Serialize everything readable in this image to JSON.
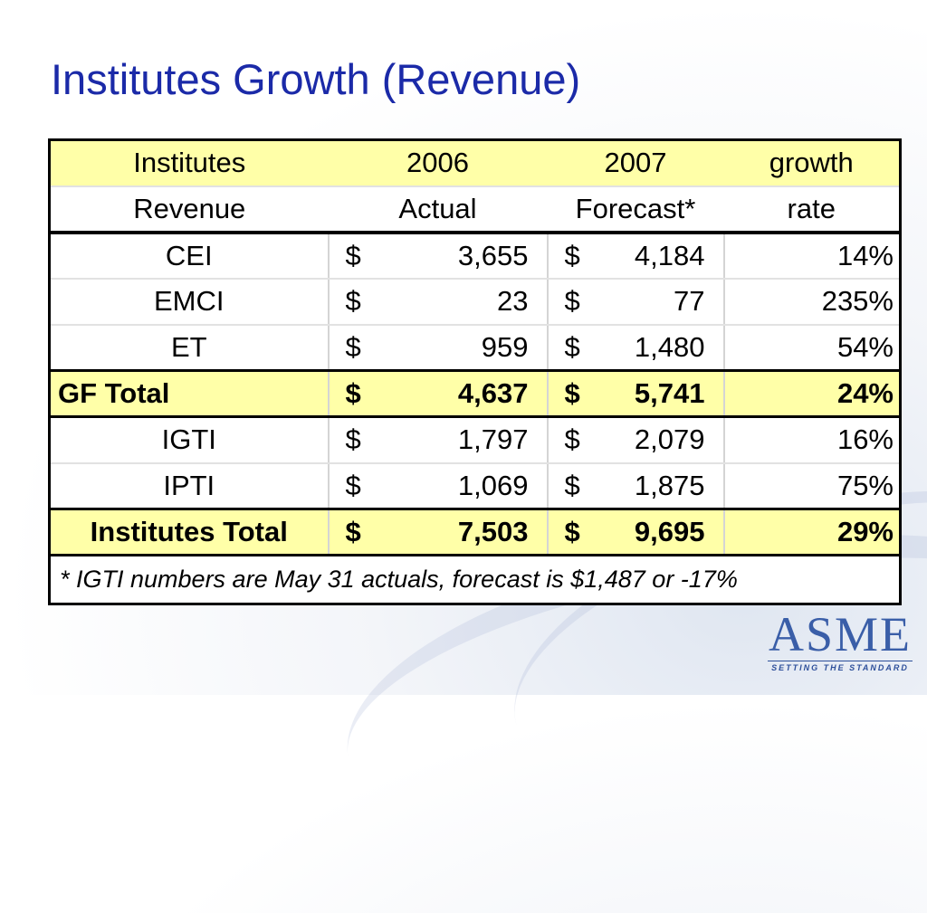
{
  "slide": {
    "title": "Institutes Growth (Revenue)"
  },
  "table": {
    "header_row1": [
      "Institutes",
      "2006",
      "2007",
      "growth"
    ],
    "header_row2": [
      "Revenue",
      "Actual",
      "Forecast*",
      "rate"
    ],
    "currency": "$",
    "rows": [
      {
        "name": "CEI",
        "actual": "3,655",
        "forecast": "4,184",
        "rate": "14%"
      },
      {
        "name": "EMCI",
        "actual": "23",
        "forecast": "77",
        "rate": "235%"
      },
      {
        "name": "ET",
        "actual": "959",
        "forecast": "1,480",
        "rate": "54%"
      },
      {
        "name": "GF Total",
        "actual": "4,637",
        "forecast": "5,741",
        "rate": "24%"
      },
      {
        "name": "IGTI",
        "actual": "1,797",
        "forecast": "2,079",
        "rate": "16%"
      },
      {
        "name": "IPTI",
        "actual": "1,069",
        "forecast": "1,875",
        "rate": "75%"
      },
      {
        "name": "Institutes Total",
        "actual": "7,503",
        "forecast": "9,695",
        "rate": "29%"
      }
    ],
    "footnote": "* IGTI numbers are May 31 actuals, forecast is $1,487 or -17%"
  },
  "logo": {
    "mark": "ASME",
    "tagline": "SETTING THE STANDARD"
  },
  "colors": {
    "title": "#1b2aa8",
    "highlight_fill": "#ffffa8",
    "logo": "#3a5ea8"
  }
}
